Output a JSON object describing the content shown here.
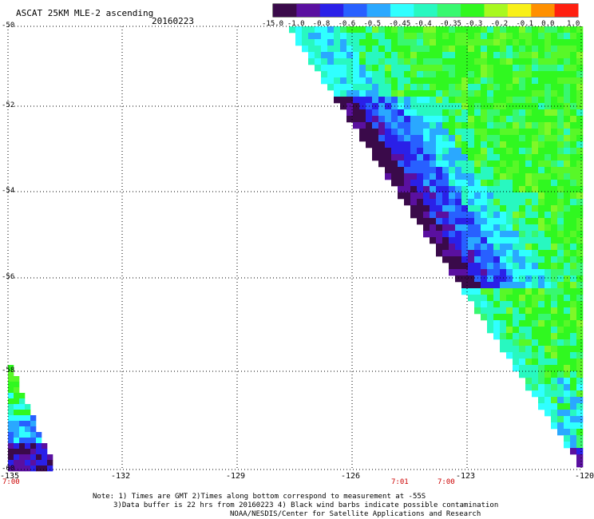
{
  "header": {
    "title": "ASCAT 25KM MLE-2 ascending",
    "date": "20160223"
  },
  "colorbar": {
    "ticks": [
      "-15.0",
      "-1.0",
      "-0.8",
      "-0.6",
      "-0.5",
      "-0.45",
      "-0.4",
      "-0.35",
      "-0.3",
      "-0.2",
      "-0.1",
      "0.0",
      "1.0"
    ],
    "colors": [
      "#3a0a4a",
      "#5a10a0",
      "#2a20e8",
      "#2860ff",
      "#2aa8ff",
      "#30ffff",
      "#28f8c0",
      "#38f870",
      "#30f820",
      "#a8f820",
      "#f8f018",
      "#ff9000",
      "#ff2010"
    ]
  },
  "axes": {
    "lat_labels": [
      "-50",
      "-52",
      "-54",
      "-56",
      "-58",
      "-60"
    ],
    "lon_labels": [
      "-135",
      "-132",
      "-129",
      "-126",
      "-123",
      "-120"
    ]
  },
  "times": {
    "left": "7:00",
    "mid1": "7:01",
    "mid2": "7:00"
  },
  "note": {
    "line1": "Note: 1) Times are GMT 2)Times along bottom correspond to measurement at -55S",
    "line2": "3)Data buffer is 22 hrs from 20160223 4) Black wind barbs indicate possible contamination",
    "line3": "NOAA/NESDIS/Center for Satellite Applications and Research"
  }
}
